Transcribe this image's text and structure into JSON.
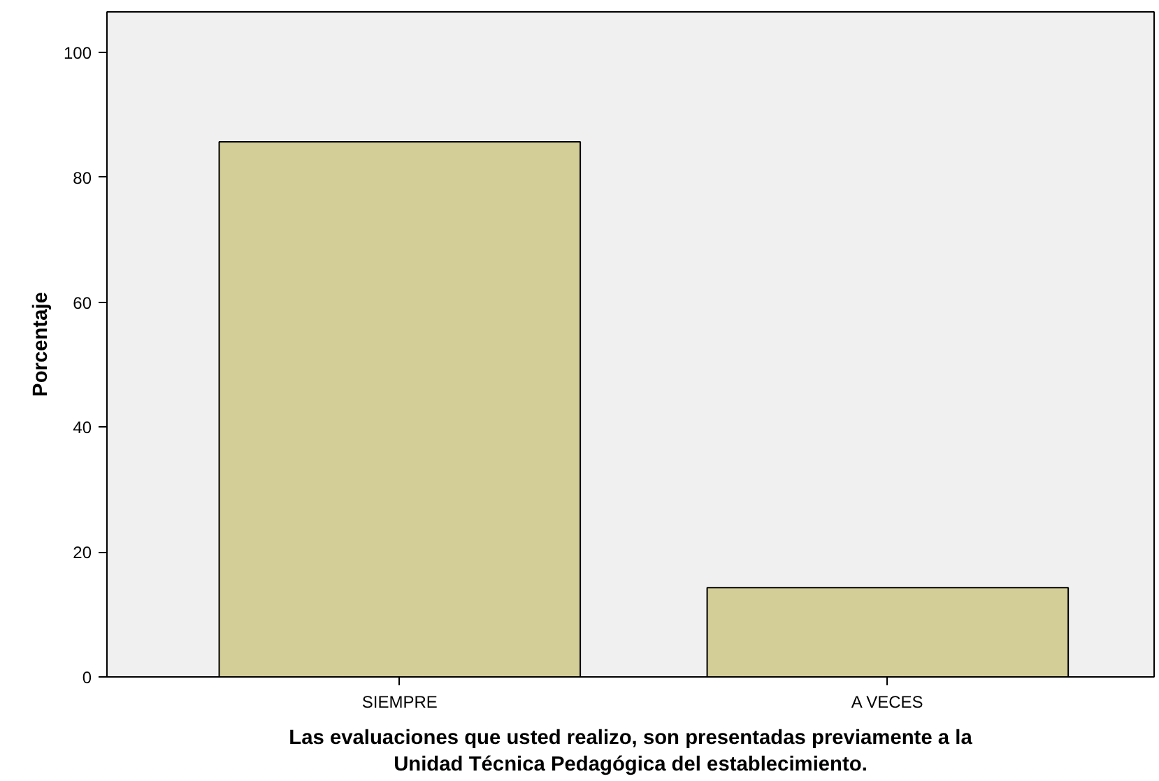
{
  "chart_data": {
    "type": "bar",
    "xlabel": "Las evaluaciones que usted realizo, son presentadas previamente a la\nUnidad Técnica Pedagógica del establecimiento.",
    "ylabel": "Porcentaje",
    "categories": [
      "SIEMPRE",
      "A VECES"
    ],
    "values": [
      85.7,
      14.3
    ],
    "color": "#d3ce98",
    "ylim": [
      0,
      106.5
    ],
    "yticks": [
      0,
      20,
      40,
      60,
      80,
      100
    ],
    "grid": false
  }
}
